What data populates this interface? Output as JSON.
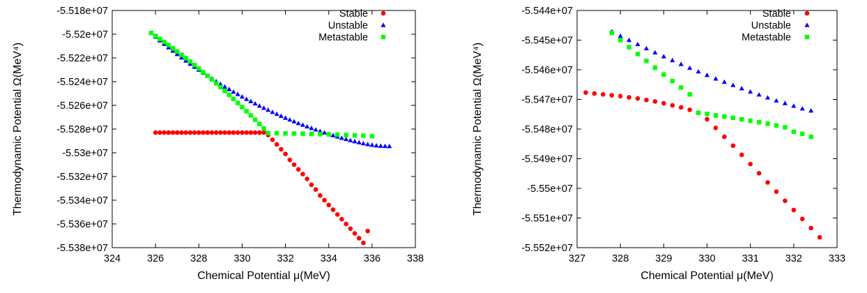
{
  "chart_data": [
    {
      "type": "scatter",
      "xlabel": "Chemical Potential μ(MeV)",
      "ylabel": "Thermodynamic Potential Ω(MeV⁴)",
      "xlim": [
        324,
        338
      ],
      "ylim": [
        -55380000,
        -55180000
      ],
      "x_ticks": [
        324,
        326,
        328,
        330,
        332,
        334,
        336,
        338
      ],
      "x_tick_labels": [
        "324",
        "326",
        "328",
        "330",
        "332",
        "334",
        "336",
        "338"
      ],
      "y_ticks": [
        -55180000,
        -55200000,
        -55220000,
        -55240000,
        -55260000,
        -55280000,
        -55300000,
        -55320000,
        -55340000,
        -55360000,
        -55380000
      ],
      "y_tick_labels": [
        "-5.518e+07",
        "-5.52e+07",
        "-5.522e+07",
        "-5.524e+07",
        "-5.526e+07",
        "-5.528e+07",
        "-5.53e+07",
        "-5.532e+07",
        "-5.534e+07",
        "-5.536e+07",
        "-5.538e+07"
      ],
      "legend_position": "top-right",
      "series": [
        {
          "name": "Stable",
          "color": "#ff0000",
          "marker": "circle",
          "x": [
            326.0,
            326.2,
            326.4,
            326.6,
            326.8,
            327.0,
            327.2,
            327.4,
            327.6,
            327.8,
            328.0,
            328.2,
            328.4,
            328.6,
            328.8,
            329.0,
            329.2,
            329.4,
            329.6,
            329.8,
            330.0,
            330.2,
            330.4,
            330.6,
            330.8,
            331.0,
            331.2,
            331.4,
            331.6,
            331.8,
            332.0,
            332.2,
            332.4,
            332.6,
            332.8,
            333.0,
            333.2,
            333.4,
            333.6,
            333.8,
            334.0,
            334.2,
            334.4,
            334.6,
            334.8,
            335.0,
            335.2,
            335.4,
            335.6,
            335.8
          ],
          "y": [
            -55283000,
            -55283000,
            -55283000,
            -55283000,
            -55283000,
            -55283000,
            -55283000,
            -55283000,
            -55283000,
            -55283000,
            -55283000,
            -55283000,
            -55283000,
            -55283000,
            -55283000,
            -55283000,
            -55283000,
            -55283000,
            -55283000,
            -55283000,
            -55283000,
            -55283000,
            -55283000,
            -55283000,
            -55283000,
            -55283000,
            -55285000,
            -55289000,
            -55293000,
            -55297000,
            -55301000,
            -55306000,
            -55310000,
            -55314000,
            -55318000,
            -55322000,
            -55327000,
            -55331000,
            -55336000,
            -55340000,
            -55344000,
            -55348000,
            -55352000,
            -55356000,
            -55360000,
            -55364000,
            -55368000,
            -55372000,
            -55376000,
            -55366000
          ]
        },
        {
          "name": "Unstable",
          "color": "#0000ff",
          "marker": "triangle",
          "x": [
            325.8,
            326.0,
            326.2,
            326.4,
            326.6,
            326.8,
            327.0,
            327.2,
            327.4,
            327.6,
            327.8,
            328.0,
            328.2,
            328.4,
            328.6,
            328.8,
            329.0,
            329.2,
            329.4,
            329.6,
            329.8,
            330.0,
            330.2,
            330.4,
            330.6,
            330.8,
            331.0,
            331.2,
            331.4,
            331.6,
            331.8,
            332.0,
            332.2,
            332.4,
            332.6,
            332.8,
            333.0,
            333.2,
            333.4,
            333.6,
            333.8,
            334.0,
            334.2,
            334.4,
            334.6,
            334.8,
            335.0,
            335.2,
            335.4,
            335.6,
            335.8,
            336.0,
            336.2,
            336.4,
            336.6,
            336.8
          ],
          "y": [
            -55199000,
            -55202200,
            -55205300,
            -55208300,
            -55211200,
            -55214100,
            -55216900,
            -55219700,
            -55222400,
            -55225000,
            -55227600,
            -55230100,
            -55232600,
            -55235100,
            -55237400,
            -55239800,
            -55242000,
            -55244300,
            -55246400,
            -55248600,
            -55250600,
            -55252700,
            -55254700,
            -55256600,
            -55258500,
            -55260400,
            -55262200,
            -55263900,
            -55265700,
            -55267300,
            -55269000,
            -55270600,
            -55272100,
            -55273600,
            -55275100,
            -55276500,
            -55277900,
            -55279200,
            -55280500,
            -55281800,
            -55283000,
            -55284200,
            -55285300,
            -55286400,
            -55287500,
            -55288500,
            -55289500,
            -55290400,
            -55291300,
            -55292100,
            -55292800,
            -55293400,
            -55293900,
            -55294200,
            -55294400,
            -55294500
          ]
        },
        {
          "name": "Metastable",
          "color": "#00ff00",
          "marker": "square",
          "x": [
            325.8,
            326.0,
            326.2,
            326.4,
            326.6,
            326.8,
            327.0,
            327.2,
            327.4,
            327.6,
            327.8,
            328.0,
            328.2,
            328.4,
            328.6,
            328.8,
            329.0,
            329.2,
            329.4,
            329.6,
            329.8,
            330.0,
            330.2,
            330.4,
            330.6,
            330.8,
            331.0,
            331.2,
            331.6,
            332.0,
            332.4,
            332.8,
            333.2,
            333.6,
            334.0,
            334.4,
            334.8,
            335.2,
            335.6,
            336.0
          ],
          "y": [
            -55199000,
            -55201500,
            -55204000,
            -55206600,
            -55209200,
            -55211900,
            -55214600,
            -55217400,
            -55220200,
            -55223000,
            -55226000,
            -55229000,
            -55232000,
            -55235100,
            -55238200,
            -55241400,
            -55244600,
            -55247900,
            -55251200,
            -55254600,
            -55258000,
            -55261500,
            -55265000,
            -55268500,
            -55272100,
            -55275800,
            -55279500,
            -55283500,
            -55283500,
            -55283700,
            -55283800,
            -55283900,
            -55284100,
            -55284300,
            -55284500,
            -55284700,
            -55285000,
            -55285300,
            -55285600,
            -55286000
          ]
        }
      ]
    },
    {
      "type": "scatter",
      "xlabel": "Chemical Potential μ(MeV)",
      "ylabel": "Thermodynamic Potential Ω(MeV⁴)",
      "xlim": [
        327,
        333
      ],
      "ylim": [
        -55520000,
        -55440000
      ],
      "x_ticks": [
        327,
        328,
        329,
        330,
        331,
        332,
        333
      ],
      "x_tick_labels": [
        "327",
        "328",
        "329",
        "330",
        "331",
        "332",
        "333"
      ],
      "y_ticks": [
        -55440000,
        -55450000,
        -55460000,
        -55470000,
        -55480000,
        -55490000,
        -55500000,
        -55510000,
        -55520000
      ],
      "y_tick_labels": [
        "-5.544e+07",
        "-5.545e+07",
        "-5.546e+07",
        "-5.547e+07",
        "-5.548e+07",
        "-5.549e+07",
        "-5.55e+07",
        "-5.551e+07",
        "-5.552e+07"
      ],
      "legend_position": "top-right",
      "series": [
        {
          "name": "Stable",
          "color": "#ff0000",
          "marker": "circle",
          "x": [
            327.2,
            327.4,
            327.6,
            327.8,
            328.0,
            328.2,
            328.4,
            328.6,
            328.8,
            329.0,
            329.2,
            329.4,
            329.6,
            329.8,
            330.0,
            330.2,
            330.4,
            330.6,
            330.8,
            331.0,
            331.2,
            331.4,
            331.6,
            331.8,
            332.0,
            332.2,
            332.4,
            332.6
          ],
          "y": [
            -55467700,
            -55468000,
            -55468300,
            -55468600,
            -55468900,
            -55469300,
            -55469700,
            -55470200,
            -55470700,
            -55471300,
            -55472000,
            -55472700,
            -55473500,
            -55474500,
            -55476700,
            -55479600,
            -55482600,
            -55485600,
            -55488700,
            -55491800,
            -55494900,
            -55498000,
            -55501100,
            -55504200,
            -55507300,
            -55510300,
            -55513400,
            -55516500
          ]
        },
        {
          "name": "Unstable",
          "color": "#0000ff",
          "marker": "triangle",
          "x": [
            327.8,
            328.0,
            328.2,
            328.4,
            328.6,
            328.8,
            329.0,
            329.2,
            329.4,
            329.6,
            329.8,
            330.0,
            330.2,
            330.4,
            330.6,
            330.8,
            331.0,
            331.2,
            331.4,
            331.6,
            331.8,
            332.0,
            332.2,
            332.4
          ],
          "y": [
            -55447100,
            -55448600,
            -55450000,
            -55451400,
            -55452800,
            -55454200,
            -55455500,
            -55456800,
            -55458100,
            -55459400,
            -55460600,
            -55461800,
            -55463000,
            -55464100,
            -55465200,
            -55466300,
            -55467400,
            -55468400,
            -55469400,
            -55470400,
            -55471300,
            -55472200,
            -55473100,
            -55473800
          ]
        },
        {
          "name": "Metastable",
          "color": "#00ff00",
          "marker": "square",
          "x": [
            327.8,
            328.0,
            328.2,
            328.4,
            328.6,
            328.8,
            329.0,
            329.2,
            329.4,
            329.6,
            329.8,
            330.0,
            330.2,
            330.4,
            330.6,
            330.8,
            331.0,
            331.2,
            331.4,
            331.6,
            331.8,
            332.0,
            332.2,
            332.4
          ],
          "y": [
            -55447600,
            -55450000,
            -55452400,
            -55454700,
            -55457000,
            -55459300,
            -55461600,
            -55463800,
            -55466000,
            -55468300,
            -55474500,
            -55474900,
            -55475400,
            -55475800,
            -55476200,
            -55476700,
            -55477200,
            -55477700,
            -55478200,
            -55478800,
            -55479400,
            -55480900,
            -55481600,
            -55482600
          ]
        }
      ]
    }
  ]
}
